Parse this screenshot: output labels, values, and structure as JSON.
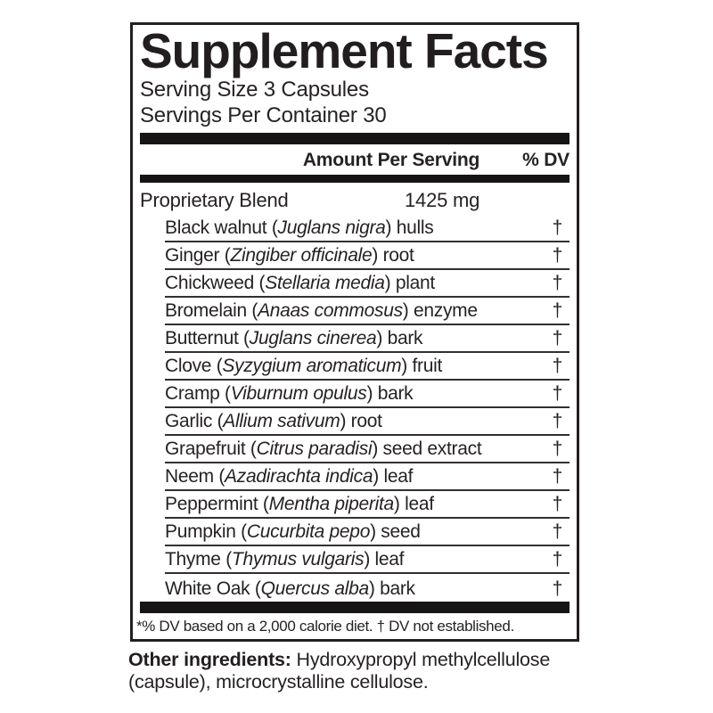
{
  "panel": {
    "title": "Supplement Facts",
    "serving_size": "Serving Size 3 Capsules",
    "servings_per_container": "Servings Per Container 30",
    "columns": {
      "amount": "Amount Per Serving",
      "dv": "% DV"
    },
    "blend": {
      "name": "Proprietary Blend",
      "amount": "1425 mg"
    },
    "ingredients": [
      {
        "name": "Black walnut",
        "latin": "Juglans nigra",
        "part": "hulls",
        "dv": "†"
      },
      {
        "name": "Ginger",
        "latin": "Zingiber officinale",
        "part": "root",
        "dv": "†"
      },
      {
        "name": "Chickweed",
        "latin": "Stellaria media",
        "part": "plant",
        "dv": "†"
      },
      {
        "name": "Bromelain",
        "latin": "Anaas commosus",
        "part": "enzyme",
        "dv": "†"
      },
      {
        "name": "Butternut",
        "latin": "Juglans cinerea",
        "part": "bark",
        "dv": "†"
      },
      {
        "name": "Clove",
        "latin": "Syzygium aromaticum",
        "part": "fruit",
        "dv": "†"
      },
      {
        "name": "Cramp",
        "latin": "Viburnum opulus",
        "part": "bark",
        "dv": "†"
      },
      {
        "name": "Garlic",
        "latin": "Allium sativum",
        "part": "root",
        "dv": "†"
      },
      {
        "name": "Grapefruit",
        "latin": "Citrus paradisi",
        "part": "seed extract",
        "dv": "†"
      },
      {
        "name": "Neem",
        "latin": "Azadirachta indica",
        "part": "leaf",
        "dv": "†"
      },
      {
        "name": "Peppermint",
        "latin": "Mentha piperita",
        "part": "leaf",
        "dv": "†"
      },
      {
        "name": "Pumpkin",
        "latin": "Cucurbita pepo",
        "part": "seed",
        "dv": "†"
      },
      {
        "name": "Thyme",
        "latin": "Thymus vulgaris",
        "part": "leaf",
        "dv": "†"
      },
      {
        "name": "White Oak",
        "latin": "Quercus alba",
        "part": "bark",
        "dv": "†"
      }
    ],
    "footnote": "*% DV based on a 2,000 calorie diet. † DV not established.",
    "colors": {
      "text": "#262223",
      "bar": "#171415",
      "border": "#231f20",
      "background": "#ffffff"
    }
  },
  "other_ingredients": {
    "label": "Other ingredients:",
    "text": " Hydroxypropyl methylcellulose (capsule), microcrystalline cellulose."
  }
}
